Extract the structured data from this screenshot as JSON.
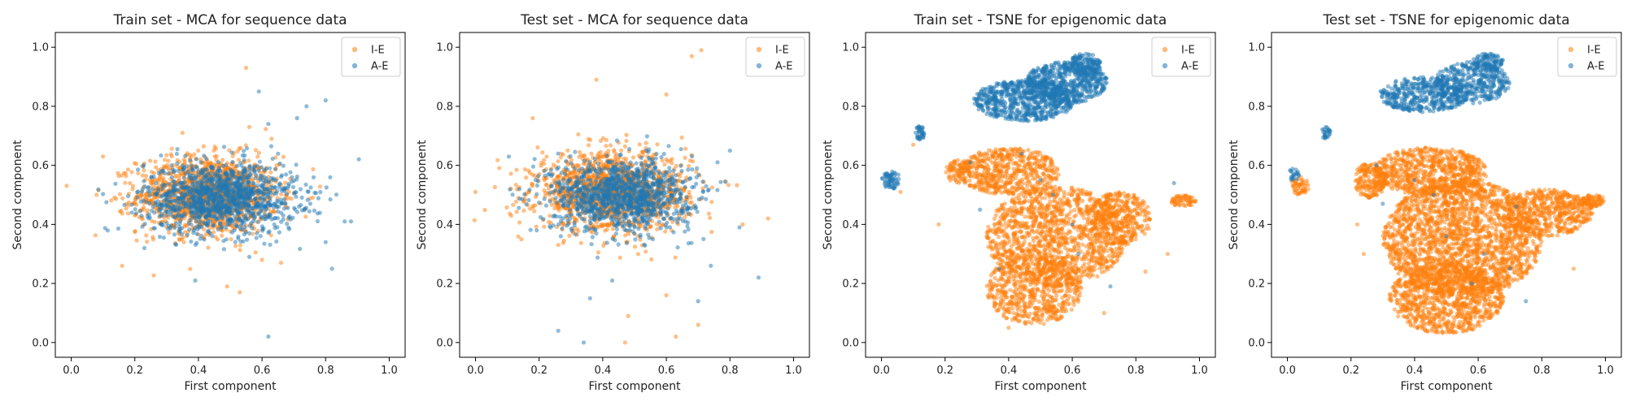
{
  "colors": {
    "ie": "#ff7f0e",
    "ae": "#1f77b4"
  },
  "chart_data": [
    {
      "type": "scatter",
      "title": "Train set - MCA for sequence data",
      "xlabel": "First component",
      "ylabel": "Second component",
      "xlim": [
        -0.05,
        1.05
      ],
      "ylim": [
        -0.05,
        1.05
      ],
      "xticks": [
        "0.0",
        "0.2",
        "0.4",
        "0.6",
        "0.8",
        "1.0"
      ],
      "yticks": [
        "0.0",
        "0.2",
        "0.4",
        "0.6",
        "0.8",
        "1.0"
      ],
      "legend_position": "top-right",
      "series": [
        {
          "name": "I-E",
          "color": "#ff7f0e",
          "distribution": {
            "kind": "gaussian",
            "cx": 0.43,
            "cy": 0.5,
            "sx": 0.11,
            "sy": 0.065,
            "count": 1400
          },
          "outliers": [
            [
              0.55,
              0.93
            ],
            [
              0.53,
              0.17
            ],
            [
              0.49,
              0.19
            ],
            [
              0.16,
              0.26
            ],
            [
              0.6,
              0.28
            ],
            [
              0.66,
              0.27
            ],
            [
              0.56,
              0.73
            ],
            [
              0.35,
              0.71
            ],
            [
              0.63,
              0.69
            ],
            [
              0.1,
              0.63
            ],
            [
              0.08,
              0.5
            ]
          ]
        },
        {
          "name": "A-E",
          "color": "#1f77b4",
          "distribution": {
            "kind": "gaussian",
            "cx": 0.47,
            "cy": 0.49,
            "sx": 0.12,
            "sy": 0.06,
            "count": 1300
          },
          "outliers": [
            [
              0.59,
              0.85
            ],
            [
              0.8,
              0.82
            ],
            [
              0.74,
              0.8
            ],
            [
              0.62,
              0.02
            ],
            [
              0.39,
              0.21
            ],
            [
              0.56,
              0.29
            ],
            [
              0.86,
              0.41
            ],
            [
              0.88,
              0.41
            ],
            [
              0.82,
              0.25
            ],
            [
              0.8,
              0.34
            ],
            [
              0.23,
              0.32
            ],
            [
              0.62,
              0.74
            ],
            [
              0.71,
              0.76
            ]
          ]
        }
      ]
    },
    {
      "type": "scatter",
      "title": "Test set - MCA for sequence data",
      "xlabel": "First component",
      "ylabel": "Second component",
      "xlim": [
        -0.05,
        1.05
      ],
      "ylim": [
        -0.05,
        1.05
      ],
      "xticks": [
        "0.0",
        "0.2",
        "0.4",
        "0.6",
        "0.8",
        "1.0"
      ],
      "yticks": [
        "0.0",
        "0.2",
        "0.4",
        "0.6",
        "0.8",
        "1.0"
      ],
      "legend_position": "top-right",
      "series": [
        {
          "name": "I-E",
          "color": "#ff7f0e",
          "distribution": {
            "kind": "gaussian",
            "cx": 0.43,
            "cy": 0.51,
            "sx": 0.12,
            "sy": 0.065,
            "count": 1400
          },
          "outliers": [
            [
              0.71,
              0.99
            ],
            [
              0.68,
              0.97
            ],
            [
              0.38,
              0.89
            ],
            [
              0.0,
              0.51
            ],
            [
              0.47,
              0.0
            ],
            [
              0.48,
              0.09
            ],
            [
              0.63,
              0.02
            ],
            [
              0.7,
              0.06
            ],
            [
              0.6,
              0.16
            ],
            [
              0.92,
              0.42
            ],
            [
              0.84,
              0.4
            ],
            [
              0.6,
              0.84
            ],
            [
              0.18,
              0.76
            ]
          ]
        },
        {
          "name": "A-E",
          "color": "#1f77b4",
          "distribution": {
            "kind": "gaussian",
            "cx": 0.46,
            "cy": 0.5,
            "sx": 0.11,
            "sy": 0.06,
            "count": 1200
          },
          "outliers": [
            [
              0.34,
              0.0
            ],
            [
              0.26,
              0.04
            ],
            [
              0.36,
              0.15
            ],
            [
              0.43,
              0.21
            ],
            [
              0.74,
              0.26
            ],
            [
              0.89,
              0.22
            ],
            [
              0.83,
              0.39
            ],
            [
              0.8,
              0.65
            ],
            [
              0.7,
              0.14
            ]
          ]
        }
      ]
    },
    {
      "type": "scatter",
      "title": "Train set - TSNE for epigenomic data",
      "xlabel": "First component",
      "ylabel": "Second component",
      "xlim": [
        -0.05,
        1.05
      ],
      "ylim": [
        -0.05,
        1.05
      ],
      "xticks": [
        "0.0",
        "0.2",
        "0.4",
        "0.6",
        "0.8",
        "1.0"
      ],
      "yticks": [
        "0.0",
        "0.2",
        "0.4",
        "0.6",
        "0.8",
        "1.0"
      ],
      "legend_position": "top-right",
      "series": [
        {
          "name": "I-E",
          "color": "#ff7f0e",
          "regions": [
            {
              "kind": "blob",
              "cx": 0.55,
              "cy": 0.36,
              "rx": 0.22,
              "ry": 0.17,
              "count": 1300
            },
            {
              "kind": "blob",
              "cx": 0.48,
              "cy": 0.18,
              "rx": 0.15,
              "ry": 0.12,
              "count": 600
            },
            {
              "kind": "blob",
              "cx": 0.4,
              "cy": 0.58,
              "rx": 0.16,
              "ry": 0.08,
              "count": 550
            },
            {
              "kind": "blob",
              "cx": 0.75,
              "cy": 0.42,
              "rx": 0.1,
              "ry": 0.09,
              "count": 350
            },
            {
              "kind": "blob",
              "cx": 0.95,
              "cy": 0.48,
              "rx": 0.04,
              "ry": 0.02,
              "count": 60
            },
            {
              "kind": "blob",
              "cx": 0.24,
              "cy": 0.58,
              "rx": 0.04,
              "ry": 0.04,
              "count": 70
            }
          ],
          "outliers": [
            [
              0.1,
              0.67
            ],
            [
              0.06,
              0.51
            ],
            [
              0.4,
              0.05
            ],
            [
              0.7,
              0.1
            ],
            [
              0.83,
              0.24
            ],
            [
              0.9,
              0.3
            ],
            [
              0.18,
              0.4
            ]
          ]
        },
        {
          "name": "A-E",
          "color": "#1f77b4",
          "regions": [
            {
              "kind": "blob",
              "cx": 0.45,
              "cy": 0.82,
              "rx": 0.16,
              "ry": 0.07,
              "count": 650
            },
            {
              "kind": "blob",
              "cx": 0.58,
              "cy": 0.88,
              "rx": 0.13,
              "ry": 0.07,
              "count": 550
            },
            {
              "kind": "blob",
              "cx": 0.64,
              "cy": 0.94,
              "rx": 0.05,
              "ry": 0.04,
              "count": 150
            },
            {
              "kind": "blob",
              "cx": 0.12,
              "cy": 0.71,
              "rx": 0.015,
              "ry": 0.025,
              "count": 35
            },
            {
              "kind": "blob",
              "cx": 0.03,
              "cy": 0.55,
              "rx": 0.03,
              "ry": 0.03,
              "count": 60
            }
          ],
          "outliers": [
            [
              0.5,
              0.55
            ],
            [
              0.54,
              0.5
            ],
            [
              0.44,
              0.64
            ],
            [
              0.28,
              0.61
            ],
            [
              0.31,
              0.45
            ],
            [
              0.6,
              0.4
            ],
            [
              0.37,
              0.25
            ],
            [
              0.62,
              0.3
            ],
            [
              0.72,
              0.19
            ],
            [
              0.92,
              0.54
            ]
          ]
        }
      ]
    },
    {
      "type": "scatter",
      "title": "Test set - TSNE for epigenomic data",
      "xlabel": "First component",
      "ylabel": "Second component",
      "xlim": [
        -0.05,
        1.05
      ],
      "ylim": [
        -0.05,
        1.05
      ],
      "xticks": [
        "0.0",
        "0.2",
        "0.4",
        "0.6",
        "0.8",
        "1.0"
      ],
      "yticks": [
        "0.0",
        "0.2",
        "0.4",
        "0.6",
        "0.8",
        "1.0"
      ],
      "legend_position": "top-right",
      "series": [
        {
          "name": "I-E",
          "color": "#ff7f0e",
          "regions": [
            {
              "kind": "blob",
              "cx": 0.55,
              "cy": 0.35,
              "rx": 0.25,
              "ry": 0.2,
              "count": 2200
            },
            {
              "kind": "blob",
              "cx": 0.5,
              "cy": 0.15,
              "rx": 0.18,
              "ry": 0.12,
              "count": 900
            },
            {
              "kind": "blob",
              "cx": 0.45,
              "cy": 0.58,
              "rx": 0.18,
              "ry": 0.08,
              "count": 700
            },
            {
              "kind": "blob",
              "cx": 0.82,
              "cy": 0.44,
              "rx": 0.14,
              "ry": 0.08,
              "count": 500
            },
            {
              "kind": "blob",
              "cx": 0.26,
              "cy": 0.55,
              "rx": 0.05,
              "ry": 0.06,
              "count": 200
            },
            {
              "kind": "blob",
              "cx": 0.04,
              "cy": 0.53,
              "rx": 0.03,
              "ry": 0.03,
              "count": 50
            },
            {
              "kind": "blob",
              "cx": 0.96,
              "cy": 0.48,
              "rx": 0.04,
              "ry": 0.02,
              "count": 80
            }
          ],
          "outliers": [
            [
              0.22,
              0.4
            ],
            [
              0.24,
              0.3
            ],
            [
              0.9,
              0.25
            ]
          ]
        },
        {
          "name": "A-E",
          "color": "#1f77b4",
          "regions": [
            {
              "kind": "blob",
              "cx": 0.43,
              "cy": 0.84,
              "rx": 0.14,
              "ry": 0.06,
              "count": 420
            },
            {
              "kind": "blob",
              "cx": 0.58,
              "cy": 0.88,
              "rx": 0.12,
              "ry": 0.07,
              "count": 380
            },
            {
              "kind": "blob",
              "cx": 0.63,
              "cy": 0.95,
              "rx": 0.05,
              "ry": 0.03,
              "count": 100
            },
            {
              "kind": "blob",
              "cx": 0.12,
              "cy": 0.71,
              "rx": 0.015,
              "ry": 0.025,
              "count": 25
            },
            {
              "kind": "blob",
              "cx": 0.02,
              "cy": 0.57,
              "rx": 0.02,
              "ry": 0.02,
              "count": 20
            }
          ],
          "outliers": [
            [
              0.4,
              0.55
            ],
            [
              0.46,
              0.5
            ],
            [
              0.5,
              0.36
            ],
            [
              0.62,
              0.3
            ],
            [
              0.58,
              0.2
            ],
            [
              0.7,
              0.25
            ],
            [
              0.75,
              0.14
            ],
            [
              0.3,
              0.47
            ],
            [
              0.28,
              0.6
            ],
            [
              0.72,
              0.46
            ]
          ]
        }
      ]
    }
  ]
}
